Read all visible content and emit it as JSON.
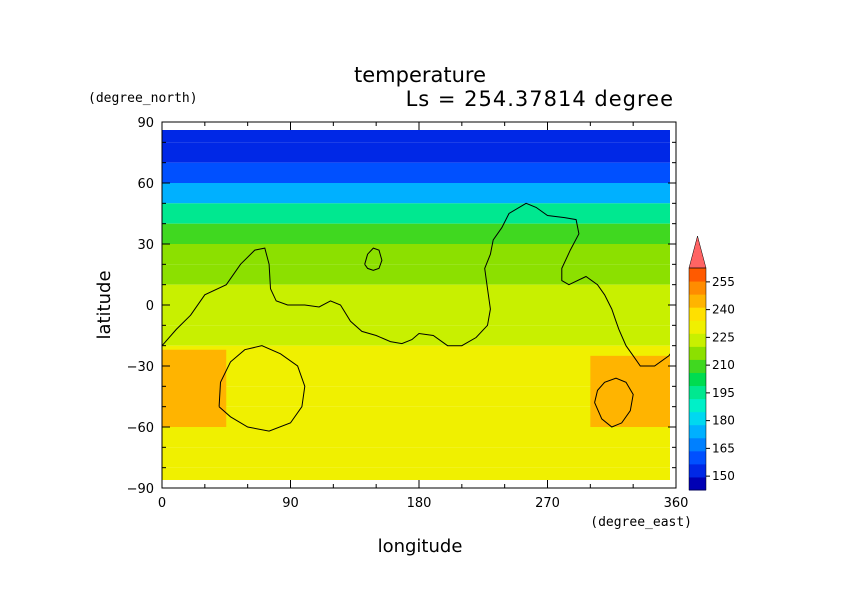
{
  "chart_data": {
    "type": "heatmap",
    "title": "temperature",
    "subtitle": "Ls = 254.37814 degree",
    "xlabel": "longitude",
    "ylabel": "latitude",
    "xunit": "(degree_east)",
    "yunit": "(degree_north)",
    "xlim": [
      0,
      360
    ],
    "ylim": [
      -90,
      90
    ],
    "xticks": [
      0,
      90,
      180,
      270,
      360
    ],
    "yticks": [
      -90,
      -60,
      -30,
      0,
      30,
      60,
      90
    ],
    "xtick_labels": [
      "0",
      "90",
      "180",
      "270",
      "360"
    ],
    "ytick_labels": [
      "−90",
      "−60",
      "−30",
      "0",
      "30",
      "60",
      "90"
    ],
    "colorbar": {
      "levels": [
        142.5,
        150,
        157.5,
        165,
        172.5,
        180,
        187.5,
        195,
        202.5,
        210,
        217.5,
        225,
        232.5,
        240,
        247.5,
        255,
        262.5
      ],
      "colors": [
        "#0000b4",
        "#0028e6",
        "#0050ff",
        "#0080ff",
        "#00b0ff",
        "#00d8f0",
        "#00f0c8",
        "#00e890",
        "#00dc50",
        "#40d820",
        "#8ce000",
        "#c8f000",
        "#f0f000",
        "#ffe000",
        "#ffb400",
        "#ff8c00",
        "#ff5a00",
        "#ff3000"
      ],
      "labels": [
        "150",
        "165",
        "180",
        "195",
        "210",
        "225",
        "240",
        "255"
      ],
      "label_values": [
        150,
        165,
        180,
        195,
        210,
        225,
        240,
        255
      ],
      "extend": "max"
    },
    "latitude_profile": [
      {
        "lat": 85,
        "value": 145
      },
      {
        "lat": 75,
        "value": 148
      },
      {
        "lat": 65,
        "value": 155
      },
      {
        "lat": 55,
        "value": 170
      },
      {
        "lat": 45,
        "value": 188
      },
      {
        "lat": 35,
        "value": 205
      },
      {
        "lat": 25,
        "value": 214
      },
      {
        "lat": 15,
        "value": 216
      },
      {
        "lat": 5,
        "value": 219
      },
      {
        "lat": -5,
        "value": 222
      },
      {
        "lat": -15,
        "value": 224
      },
      {
        "lat": -25,
        "value": 227
      },
      {
        "lat": -35,
        "value": 229
      },
      {
        "lat": -45,
        "value": 230
      },
      {
        "lat": -55,
        "value": 230
      },
      {
        "lat": -65,
        "value": 231
      },
      {
        "lat": -75,
        "value": 232
      },
      {
        "lat": -85,
        "value": 232
      }
    ],
    "warm_regions": [
      {
        "lon_range": [
          0,
          45
        ],
        "lat_range": [
          -60,
          -22
        ],
        "value": 243
      },
      {
        "lon_range": [
          300,
          360
        ],
        "lat_range": [
          -60,
          -25
        ],
        "value": 243
      }
    ],
    "contours": [
      {
        "name": "topography-main",
        "points": [
          [
            0,
            -20
          ],
          [
            10,
            -12
          ],
          [
            20,
            -5
          ],
          [
            30,
            5
          ],
          [
            45,
            10
          ],
          [
            55,
            20
          ],
          [
            65,
            27
          ],
          [
            72,
            28
          ],
          [
            75,
            20
          ],
          [
            76,
            8
          ],
          [
            80,
            2
          ],
          [
            88,
            0
          ],
          [
            100,
            0
          ],
          [
            110,
            -1
          ],
          [
            118,
            2
          ],
          [
            125,
            0
          ],
          [
            132,
            -8
          ],
          [
            140,
            -13
          ],
          [
            150,
            -15
          ],
          [
            160,
            -18
          ],
          [
            168,
            -19
          ],
          [
            175,
            -17
          ],
          [
            180,
            -14
          ],
          [
            190,
            -15
          ],
          [
            200,
            -20
          ],
          [
            210,
            -20
          ],
          [
            220,
            -16
          ],
          [
            228,
            -10
          ],
          [
            230,
            -2
          ],
          [
            228,
            8
          ],
          [
            226,
            18
          ],
          [
            230,
            25
          ],
          [
            232,
            32
          ],
          [
            238,
            38
          ],
          [
            243,
            45
          ],
          [
            255,
            50
          ],
          [
            262,
            48
          ],
          [
            270,
            44
          ],
          [
            282,
            43
          ],
          [
            290,
            42
          ],
          [
            292,
            35
          ],
          [
            286,
            27
          ],
          [
            280,
            18
          ],
          [
            280,
            12
          ],
          [
            285,
            10
          ],
          [
            297,
            14
          ],
          [
            305,
            10
          ],
          [
            310,
            5
          ],
          [
            315,
            -2
          ],
          [
            318,
            -8
          ],
          [
            320,
            -12
          ],
          [
            325,
            -20
          ],
          [
            330,
            -25
          ],
          [
            335,
            -30
          ],
          [
            345,
            -30
          ],
          [
            355,
            -25
          ],
          [
            360,
            -20
          ]
        ]
      },
      {
        "name": "small-loop-north",
        "points": [
          [
            142,
            20
          ],
          [
            144,
            25
          ],
          [
            148,
            28
          ],
          [
            152,
            27
          ],
          [
            154,
            22
          ],
          [
            152,
            18
          ],
          [
            148,
            17
          ],
          [
            144,
            18
          ],
          [
            142,
            20
          ]
        ]
      },
      {
        "name": "loop-southwest",
        "points": [
          [
            40,
            -50
          ],
          [
            41,
            -38
          ],
          [
            48,
            -28
          ],
          [
            58,
            -22
          ],
          [
            70,
            -20
          ],
          [
            83,
            -24
          ],
          [
            95,
            -30
          ],
          [
            100,
            -40
          ],
          [
            98,
            -50
          ],
          [
            90,
            -58
          ],
          [
            75,
            -62
          ],
          [
            60,
            -60
          ],
          [
            48,
            -55
          ],
          [
            40,
            -50
          ]
        ]
      },
      {
        "name": "loop-southeast",
        "points": [
          [
            303,
            -48
          ],
          [
            305,
            -42
          ],
          [
            310,
            -38
          ],
          [
            318,
            -36
          ],
          [
            325,
            -38
          ],
          [
            330,
            -44
          ],
          [
            328,
            -52
          ],
          [
            322,
            -58
          ],
          [
            315,
            -60
          ],
          [
            308,
            -56
          ],
          [
            303,
            -48
          ]
        ]
      }
    ]
  }
}
